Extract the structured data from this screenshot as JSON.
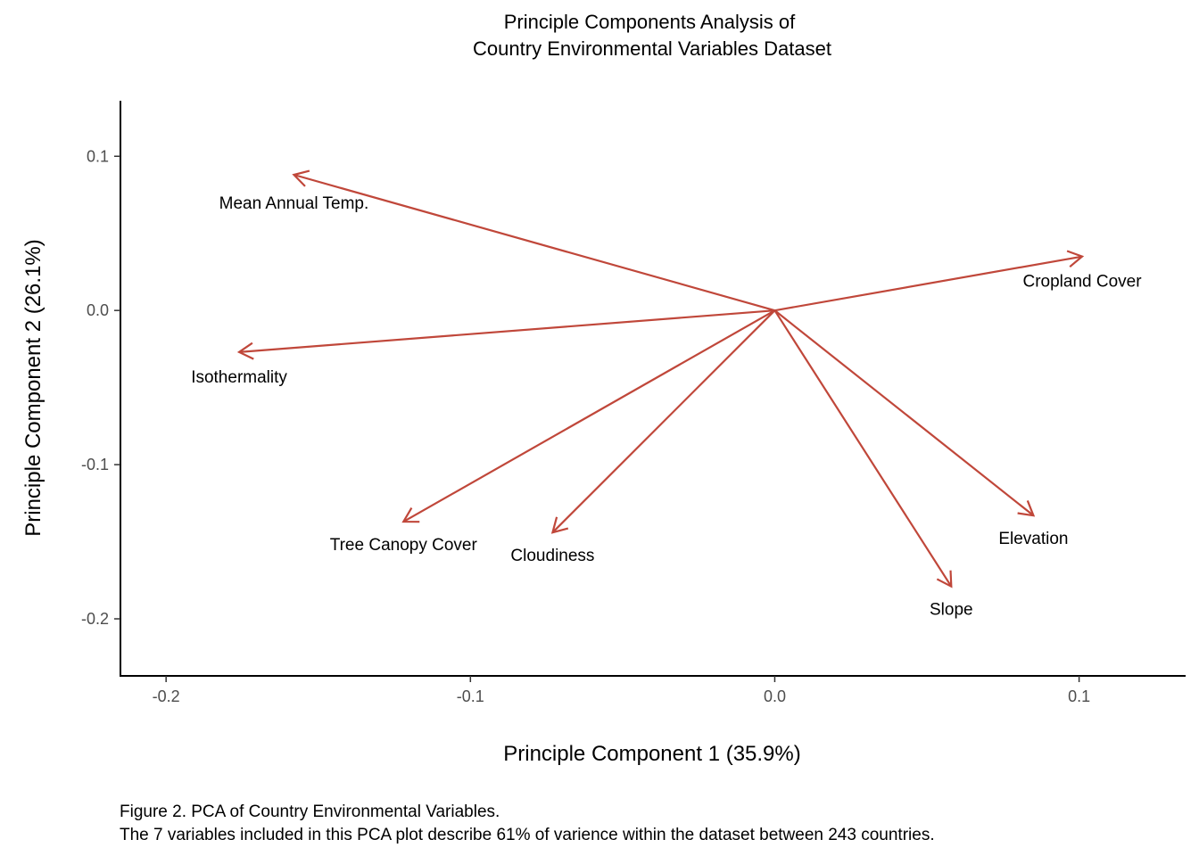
{
  "chart_data": {
    "type": "biplot",
    "title_lines": [
      "Principle Components Analysis of",
      "Country Environmental Variables Dataset"
    ],
    "xlabel": "Principle Component 1 (35.9%)",
    "ylabel": "Principle Component 2 (26.1%)",
    "xlim": [
      -0.215,
      0.135
    ],
    "ylim": [
      -0.237,
      0.136
    ],
    "x_ticks": [
      -0.2,
      -0.1,
      0.0,
      0.1
    ],
    "x_tick_labels": [
      "-0.2",
      "-0.1",
      "0.0",
      "0.1"
    ],
    "y_ticks": [
      -0.2,
      -0.1,
      0.0,
      0.1
    ],
    "y_tick_labels": [
      "-0.2",
      "-0.1",
      "0.0",
      "0.1"
    ],
    "grid": false,
    "arrow_color": "#c0473a",
    "origin": [
      0,
      0
    ],
    "vectors": [
      {
        "label": "Mean Annual Temp.",
        "x": -0.158,
        "y": 0.088
      },
      {
        "label": "Cropland Cover",
        "x": 0.101,
        "y": 0.035
      },
      {
        "label": "Isothermality",
        "x": -0.176,
        "y": -0.027
      },
      {
        "label": "Tree Canopy Cover",
        "x": -0.122,
        "y": -0.137
      },
      {
        "label": "Cloudiness",
        "x": -0.073,
        "y": -0.144
      },
      {
        "label": "Slope",
        "x": 0.058,
        "y": -0.179
      },
      {
        "label": "Elevation",
        "x": 0.085,
        "y": -0.133
      }
    ]
  },
  "caption_lines": [
    "Figure 2. PCA of Country Environmental Variables.",
    "The 7 variables included in this PCA plot describe 61% of varience within the dataset between 243 countries."
  ]
}
